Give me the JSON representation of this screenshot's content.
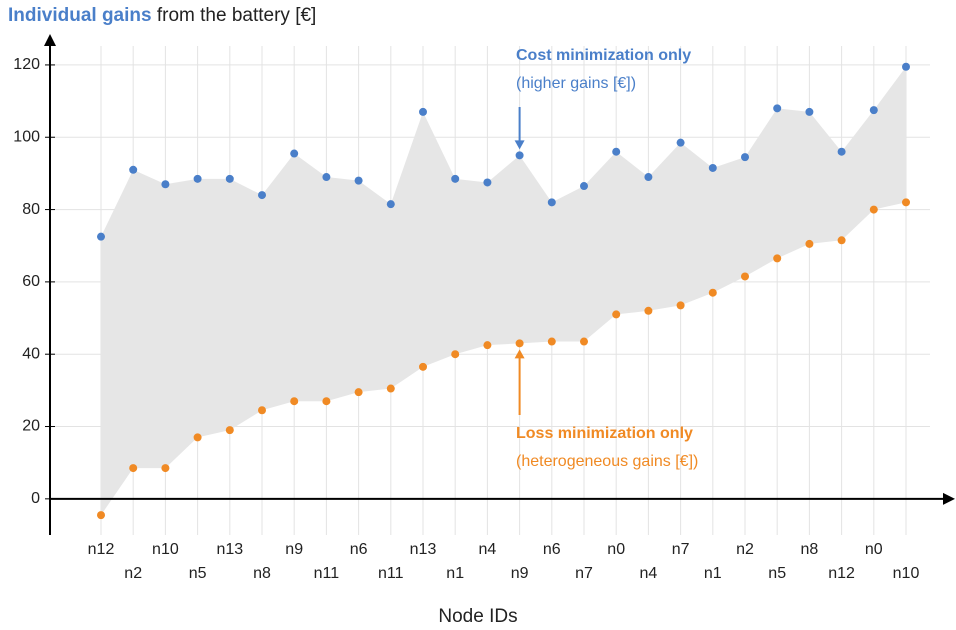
{
  "chart_data": {
    "type": "range-scatter",
    "title_bold": "Individual gains",
    "title_rest": "from the battery [€]",
    "x_label": "Node IDs",
    "categories": [
      "n12",
      "n2",
      "n10",
      "n5",
      "n13",
      "n8",
      "n9",
      "n11",
      "n6",
      "n11",
      "n13",
      "n1",
      "n4",
      "n9",
      "n6",
      "n7",
      "n0",
      "n4",
      "n7",
      "n1",
      "n2",
      "n5",
      "n8",
      "n12",
      "n0",
      "n10"
    ],
    "series": [
      {
        "name": "Cost minimization only",
        "note": "(higher gains [€])",
        "color": "#4a7fc9",
        "values": [
          72.5,
          91,
          87,
          88.5,
          88.5,
          84,
          95.5,
          89,
          88,
          81.5,
          107,
          88.5,
          87.5,
          95,
          82,
          86.5,
          96,
          89,
          98.5,
          91.5,
          94.5,
          108,
          107,
          96,
          107.5,
          119.5
        ]
      },
      {
        "name": "Loss minimization only",
        "note": "(heterogeneous gains [€])",
        "color": "#f08a24",
        "values": [
          -4.5,
          8.5,
          8.5,
          17,
          19,
          24.5,
          27,
          27,
          29.5,
          30.5,
          36.5,
          40,
          42.5,
          43,
          43.5,
          43.5,
          51,
          52,
          53.5,
          57,
          61.5,
          66.5,
          70.5,
          71.5,
          80,
          82
        ]
      }
    ],
    "band_color": "#e6e6e6",
    "ylim": [
      -10,
      128
    ],
    "yticks": [
      0,
      20,
      40,
      60,
      80,
      100,
      120
    ],
    "grid": true
  }
}
